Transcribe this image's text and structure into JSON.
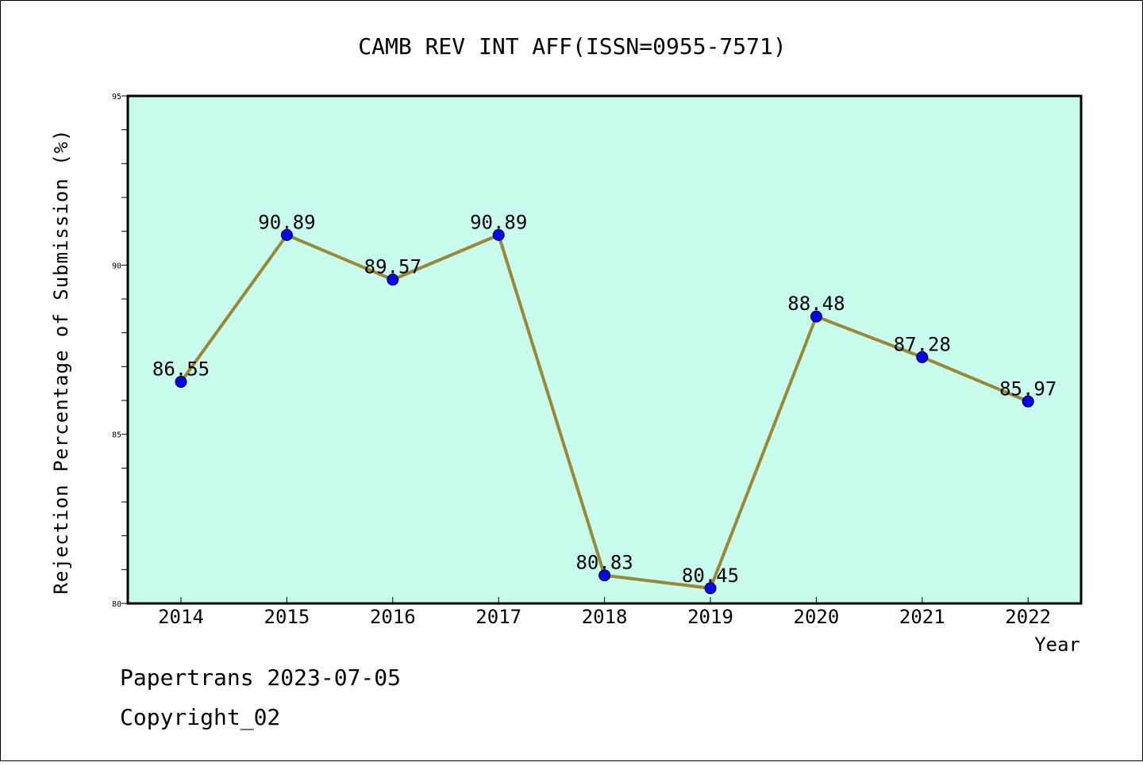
{
  "chart_data": {
    "type": "line",
    "title": "CAMB REV INT AFF(ISSN=0955-7571)",
    "xlabel": "Year",
    "ylabel": "Rejection Percentage of Submission (%)",
    "categories": [
      "2014",
      "2015",
      "2016",
      "2017",
      "2018",
      "2019",
      "2020",
      "2021",
      "2022"
    ],
    "series": [
      {
        "values": [
          86.55,
          90.89,
          89.57,
          90.89,
          80.83,
          80.45,
          88.48,
          87.28,
          85.97
        ],
        "labels": [
          "86.55",
          "90.89",
          "89.57",
          "90.89",
          "80.83",
          "80.45",
          "88.48",
          "87.28",
          "85.97"
        ]
      }
    ],
    "ylim": [
      80,
      95
    ],
    "yticks": [
      "80",
      "85",
      "90",
      "95"
    ],
    "grid": false,
    "colors": {
      "plot_background": "#c8fcec",
      "line": "#9a8838",
      "marker": "#0000ff"
    }
  },
  "footer": {
    "line1": "Papertrans 2023-07-05",
    "line2": "Copyright_02"
  }
}
